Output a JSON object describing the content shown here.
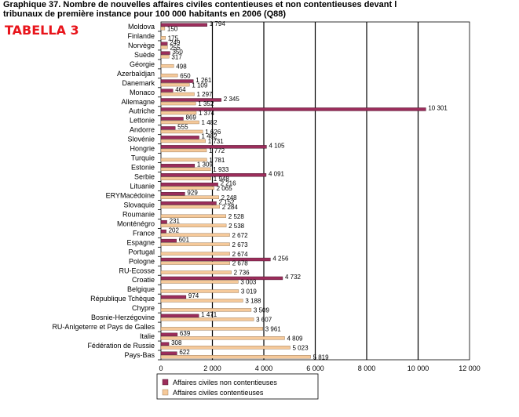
{
  "header": {
    "title_line1": "Graphique 37. Nombre de nouvelles affaires civiles contentieuses et non contentieuses devant l",
    "title_line2": "tribunaux de première instance pour 100 000 habitants en 2006 (Q88)",
    "tag": "TABELLA 3"
  },
  "chart_data": {
    "type": "bar",
    "orientation": "horizontal",
    "title": "Graphique 37. Nombre de nouvelles affaires civiles contentieuses et non contentieuses devant les tribunaux de première instance pour 100 000 habitants en 2006 (Q88)",
    "xlim": [
      0,
      12000
    ],
    "xticks": [
      0,
      2000,
      4000,
      6000,
      8000,
      10000,
      12000
    ],
    "xtick_labels": [
      "0",
      "2 000",
      "4 000",
      "6 000",
      "8 000",
      "10 000",
      "12 000"
    ],
    "grid": "vertical major gridlines",
    "legend_position": "bottom-center",
    "colors": {
      "non_contentieuses": "#9b2d5b",
      "contentieuses": "#f5c99a",
      "grid": "#000000"
    },
    "categories": [
      "Moldova",
      "Finlande",
      "Norvège",
      "Suède",
      "Géorgie",
      "Azerbaïdjan",
      "Danemark",
      "Monaco",
      "Allemagne",
      "Autriche",
      "Lettonie",
      "Andorre",
      "Slovénie",
      "Hongrie",
      "Turquie",
      "Estonie",
      "Serbie",
      "Lituanie",
      "ERYMacédoine",
      "Slovaquie",
      "Roumanie",
      "Monténégro",
      "France",
      "Espagne",
      "Portugal",
      "Pologne",
      "RU-Ecosse",
      "Croatie",
      "Belgique",
      "République Tchèque",
      "Chypre",
      "Bosnie-Herzégovine",
      "RU-Anlgeterre et Pays de Galles",
      "Italie",
      "Fédération de Russie",
      "Pays-Bas"
    ],
    "series": [
      {
        "name": "Affaires civiles non contentieuses",
        "values": [
          1794,
          null,
          249,
          350,
          null,
          null,
          1261,
          464,
          2345,
          10301,
          869,
          555,
          1482,
          4105,
          null,
          1309,
          4091,
          2216,
          929,
          2152,
          null,
          231,
          202,
          601,
          null,
          4256,
          null,
          4732,
          null,
          974,
          null,
          1471,
          null,
          639,
          308,
          622
        ],
        "labels": [
          "1 794",
          "",
          "249",
          "350",
          "",
          "",
          "1 261",
          "464",
          "2 345",
          "10 301",
          "869",
          "555",
          "1 482",
          "4 105",
          "",
          "1 309",
          "4 091",
          "2 216",
          "929",
          "2 152",
          "",
          "231",
          "202",
          "601",
          "",
          "4 256",
          "",
          "4 732",
          "",
          "974",
          "",
          "1 471",
          "",
          "639",
          "308",
          "622"
        ]
      },
      {
        "name": "Affaires civiles contentieuses",
        "values": [
          150,
          175,
          255,
          317,
          498,
          650,
          1109,
          1297,
          1352,
          1374,
          1482,
          1626,
          1731,
          1772,
          1781,
          1933,
          1948,
          2065,
          2248,
          2284,
          2528,
          2538,
          2672,
          2673,
          2674,
          2678,
          2736,
          3003,
          3019,
          3188,
          3509,
          3607,
          3961,
          4809,
          5023,
          5819
        ],
        "labels": [
          "150",
          "175",
          "255",
          "317",
          "498",
          "650",
          "1 109",
          "1 297",
          "1 352",
          "1 374",
          "1 482",
          "1 626",
          "1 731",
          "1 772",
          "1 781",
          "1 933",
          "1 948",
          "2 065",
          "2 248",
          "2 284",
          "2 528",
          "2 538",
          "2 672",
          "2 673",
          "2 674",
          "2 678",
          "2 736",
          "3 003",
          "3 019",
          "3 188",
          "3 509",
          "3 607",
          "3 961",
          "4 809",
          "5 023",
          "5 819"
        ]
      }
    ]
  }
}
